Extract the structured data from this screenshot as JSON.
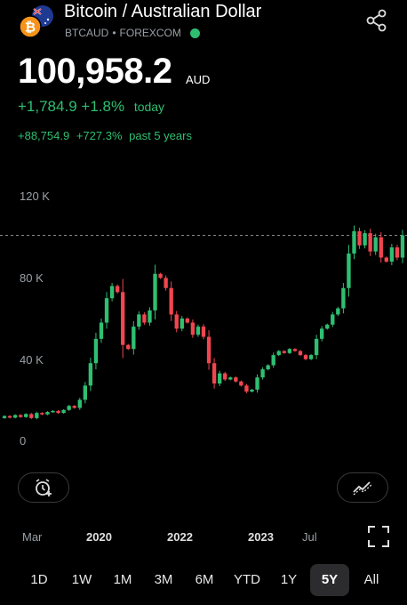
{
  "header": {
    "title": "Bitcoin / Australian Dollar",
    "symbol": "BTCAUD",
    "separator": "•",
    "exchange": "FOREXCOM",
    "market_status_color": "#2fbf71"
  },
  "quote": {
    "price": "100,958.2",
    "currency": "AUD",
    "change_today": "+1,784.9",
    "change_today_pct": "+1.8%",
    "today_label": "today",
    "change_5y": "+88,754.9",
    "change_5y_pct": "+727.3%",
    "period_label": "past 5 years"
  },
  "chart_data": {
    "type": "candlestick",
    "y_ticks": [
      "120 K",
      "80 K",
      "40 K",
      "0"
    ],
    "x_ticks": [
      {
        "label": "Mar",
        "bold": false
      },
      {
        "label": "2020",
        "bold": true
      },
      {
        "label": "2022",
        "bold": true
      },
      {
        "label": "2023",
        "bold": true
      },
      {
        "label": "Jul",
        "bold": false
      }
    ],
    "ylim": [
      0,
      120000
    ],
    "current_price_line": 100958.2,
    "colors": {
      "up": "#2fbf71",
      "down": "#f0464f"
    },
    "candles": [
      {
        "o": 11000,
        "c": 12000
      },
      {
        "o": 12000,
        "c": 11200
      },
      {
        "o": 11200,
        "c": 12500
      },
      {
        "o": 12500,
        "c": 11500
      },
      {
        "o": 11500,
        "c": 13000
      },
      {
        "o": 13000,
        "c": 11000
      },
      {
        "o": 11000,
        "c": 13500
      },
      {
        "o": 13500,
        "c": 12800
      },
      {
        "o": 12800,
        "c": 14000
      },
      {
        "o": 14000,
        "c": 14500
      },
      {
        "o": 14500,
        "c": 13500
      },
      {
        "o": 13500,
        "c": 15000
      },
      {
        "o": 15000,
        "c": 17000
      },
      {
        "o": 17000,
        "c": 16000
      },
      {
        "o": 16000,
        "c": 20000
      },
      {
        "o": 20000,
        "c": 27000
      },
      {
        "o": 27000,
        "c": 38000
      },
      {
        "o": 38000,
        "c": 50000
      },
      {
        "o": 50000,
        "c": 58000
      },
      {
        "o": 58000,
        "c": 70000
      },
      {
        "o": 70000,
        "c": 76000
      },
      {
        "o": 76000,
        "c": 73000
      },
      {
        "o": 73000,
        "c": 47000
      },
      {
        "o": 47000,
        "c": 45000
      },
      {
        "o": 45000,
        "c": 56000
      },
      {
        "o": 56000,
        "c": 62000
      },
      {
        "o": 62000,
        "c": 58000
      },
      {
        "o": 58000,
        "c": 64000
      },
      {
        "o": 64000,
        "c": 82000
      },
      {
        "o": 82000,
        "c": 80000
      },
      {
        "o": 80000,
        "c": 75000
      },
      {
        "o": 75000,
        "c": 62000
      },
      {
        "o": 62000,
        "c": 55000
      },
      {
        "o": 55000,
        "c": 60000
      },
      {
        "o": 60000,
        "c": 58000
      },
      {
        "o": 58000,
        "c": 52000
      },
      {
        "o": 52000,
        "c": 56000
      },
      {
        "o": 56000,
        "c": 51000
      },
      {
        "o": 51000,
        "c": 38000
      },
      {
        "o": 38000,
        "c": 28000
      },
      {
        "o": 28000,
        "c": 33000
      },
      {
        "o": 33000,
        "c": 30000
      },
      {
        "o": 30000,
        "c": 31000
      },
      {
        "o": 31000,
        "c": 29000
      },
      {
        "o": 29000,
        "c": 27000
      },
      {
        "o": 27000,
        "c": 24000
      },
      {
        "o": 24000,
        "c": 25000
      },
      {
        "o": 25000,
        "c": 31000
      },
      {
        "o": 31000,
        "c": 35000
      },
      {
        "o": 35000,
        "c": 37000
      },
      {
        "o": 37000,
        "c": 42000
      },
      {
        "o": 42000,
        "c": 44000
      },
      {
        "o": 44000,
        "c": 43000
      },
      {
        "o": 43000,
        "c": 45000
      },
      {
        "o": 45000,
        "c": 44000
      },
      {
        "o": 44000,
        "c": 42000
      },
      {
        "o": 42000,
        "c": 40000
      },
      {
        "o": 40000,
        "c": 42000
      },
      {
        "o": 42000,
        "c": 50000
      },
      {
        "o": 50000,
        "c": 55000
      },
      {
        "o": 55000,
        "c": 57000
      },
      {
        "o": 57000,
        "c": 62000
      },
      {
        "o": 62000,
        "c": 65000
      },
      {
        "o": 65000,
        "c": 75000
      },
      {
        "o": 75000,
        "c": 92000
      },
      {
        "o": 92000,
        "c": 103000
      },
      {
        "o": 103000,
        "c": 96000
      },
      {
        "o": 96000,
        "c": 102000
      },
      {
        "o": 102000,
        "c": 93000
      },
      {
        "o": 93000,
        "c": 100000
      },
      {
        "o": 100000,
        "c": 90000
      },
      {
        "o": 90000,
        "c": 88000
      },
      {
        "o": 88000,
        "c": 95000
      },
      {
        "o": 95000,
        "c": 90000
      },
      {
        "o": 90000,
        "c": 100958
      }
    ]
  },
  "controls": {
    "alert_icon": "alarm-plus-icon",
    "indicator_icon": "chart-trend-icon",
    "fullscreen_icon": "fullscreen-icon",
    "share_icon": "share-icon"
  },
  "ranges": [
    {
      "label": "1D",
      "selected": false
    },
    {
      "label": "1W",
      "selected": false
    },
    {
      "label": "1M",
      "selected": false
    },
    {
      "label": "3M",
      "selected": false
    },
    {
      "label": "6M",
      "selected": false
    },
    {
      "label": "YTD",
      "selected": false
    },
    {
      "label": "1Y",
      "selected": false
    },
    {
      "label": "5Y",
      "selected": true
    },
    {
      "label": "All",
      "selected": false
    }
  ]
}
